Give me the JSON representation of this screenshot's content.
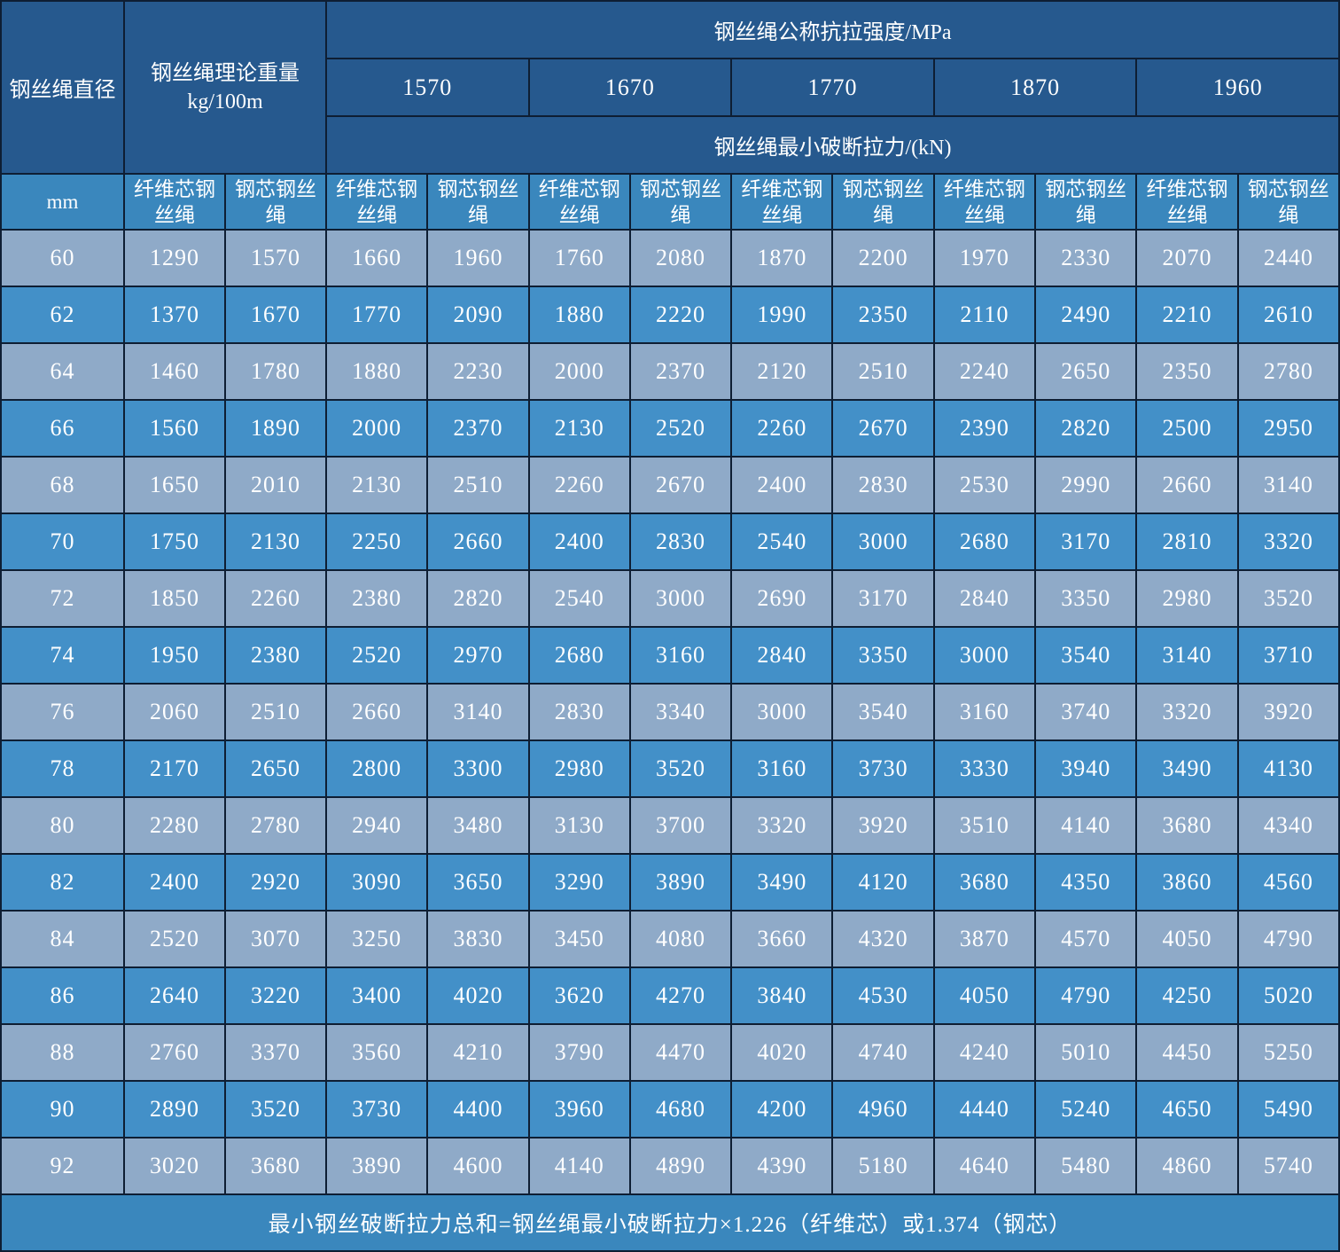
{
  "table": {
    "header": {
      "diameter_label": "钢丝绳直径",
      "diameter_unit": "mm",
      "weight_label_line1": "钢丝绳理论重量",
      "weight_label_line2": "kg/100m",
      "strength_label": "钢丝绳公称抗拉强度/MPa",
      "strength_values": [
        "1570",
        "1670",
        "1770",
        "1870",
        "1960"
      ],
      "breaking_force_label": "钢丝绳最小破断拉力/(kN)",
      "fiber_core_label": "纤维芯钢丝绳",
      "steel_core_label": "钢芯钢丝绳"
    },
    "footer_note": "最小钢丝破断拉力总和=钢丝绳最小破断拉力×1.226（纤维芯）或1.374（钢芯）"
  },
  "chart_data": {
    "type": "table",
    "title": "钢丝绳公称抗拉强度/MPa 与 钢丝绳最小破断拉力/(kN)",
    "columns": [
      "钢丝绳直径 mm",
      "钢丝绳理论重量 kg/100m 纤维芯钢丝绳",
      "钢丝绳理论重量 kg/100m 钢芯钢丝绳",
      "1570 纤维芯钢丝绳",
      "1570 钢芯钢丝绳",
      "1670 纤维芯钢丝绳",
      "1670 钢芯钢丝绳",
      "1770 纤维芯钢丝绳",
      "1770 钢芯钢丝绳",
      "1870 纤维芯钢丝绳",
      "1870 钢芯钢丝绳",
      "1960 纤维芯钢丝绳",
      "1960 钢芯钢丝绳"
    ],
    "rows": [
      [
        60,
        1290,
        1570,
        1660,
        1960,
        1760,
        2080,
        1870,
        2200,
        1970,
        2330,
        2070,
        2440
      ],
      [
        62,
        1370,
        1670,
        1770,
        2090,
        1880,
        2220,
        1990,
        2350,
        2110,
        2490,
        2210,
        2610
      ],
      [
        64,
        1460,
        1780,
        1880,
        2230,
        2000,
        2370,
        2120,
        2510,
        2240,
        2650,
        2350,
        2780
      ],
      [
        66,
        1560,
        1890,
        2000,
        2370,
        2130,
        2520,
        2260,
        2670,
        2390,
        2820,
        2500,
        2950
      ],
      [
        68,
        1650,
        2010,
        2130,
        2510,
        2260,
        2670,
        2400,
        2830,
        2530,
        2990,
        2660,
        3140
      ],
      [
        70,
        1750,
        2130,
        2250,
        2660,
        2400,
        2830,
        2540,
        3000,
        2680,
        3170,
        2810,
        3320
      ],
      [
        72,
        1850,
        2260,
        2380,
        2820,
        2540,
        3000,
        2690,
        3170,
        2840,
        3350,
        2980,
        3520
      ],
      [
        74,
        1950,
        2380,
        2520,
        2970,
        2680,
        3160,
        2840,
        3350,
        3000,
        3540,
        3140,
        3710
      ],
      [
        76,
        2060,
        2510,
        2660,
        3140,
        2830,
        3340,
        3000,
        3540,
        3160,
        3740,
        3320,
        3920
      ],
      [
        78,
        2170,
        2650,
        2800,
        3300,
        2980,
        3520,
        3160,
        3730,
        3330,
        3940,
        3490,
        4130
      ],
      [
        80,
        2280,
        2780,
        2940,
        3480,
        3130,
        3700,
        3320,
        3920,
        3510,
        4140,
        3680,
        4340
      ],
      [
        82,
        2400,
        2920,
        3090,
        3650,
        3290,
        3890,
        3490,
        4120,
        3680,
        4350,
        3860,
        4560
      ],
      [
        84,
        2520,
        3070,
        3250,
        3830,
        3450,
        4080,
        3660,
        4320,
        3870,
        4570,
        4050,
        4790
      ],
      [
        86,
        2640,
        3220,
        3400,
        4020,
        3620,
        4270,
        3840,
        4530,
        4050,
        4790,
        4250,
        5020
      ],
      [
        88,
        2760,
        3370,
        3560,
        4210,
        3790,
        4470,
        4020,
        4740,
        4240,
        5010,
        4450,
        5250
      ],
      [
        90,
        2890,
        3520,
        3730,
        4400,
        3960,
        4680,
        4200,
        4960,
        4440,
        5240,
        4650,
        5490
      ],
      [
        92,
        3020,
        3680,
        3890,
        4600,
        4140,
        4890,
        4390,
        5180,
        4640,
        5480,
        4860,
        5740
      ]
    ]
  },
  "colors": {
    "header_bg": "#26598e",
    "subheader_bg": "#3a87bd",
    "row_light_bg": "#8faac8",
    "row_dark_bg": "#4390c8",
    "footer_bg": "#3a87bd",
    "border": "#0e1e33",
    "text": "#ffffff"
  }
}
